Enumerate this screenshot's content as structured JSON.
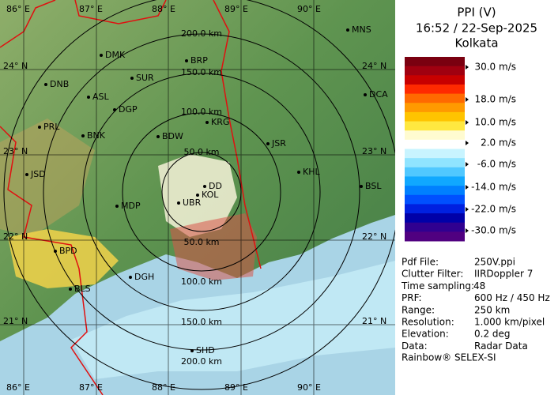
{
  "map": {
    "longitude_labels": [
      "86° E",
      "87° E",
      "88° E",
      "89° E",
      "90° E"
    ],
    "latitude_labels": [
      "24° N",
      "23° N",
      "22° N",
      "21° N"
    ],
    "range_labels": [
      "50.0 km",
      "100.0 km",
      "150.0 km",
      "200.0 km"
    ],
    "places": [
      "MNS",
      "DMK",
      "BRP",
      "DNB",
      "SUR",
      "ASL",
      "DCA",
      "DGP",
      "KRG",
      "PRL",
      "BNK",
      "BDW",
      "JSR",
      "KHL",
      "JSD",
      "DD",
      "KOL",
      "UBR",
      "BSL",
      "MDP",
      "BPD",
      "DGH",
      "BLS",
      "SHD"
    ]
  },
  "legend": {
    "title": "PPI (V)",
    "timestamp": "16:52 / 22-Sep-2025",
    "site": "Kolkata",
    "scale_labels": [
      "30.0 m/s",
      "18.0 m/s",
      "10.0 m/s",
      "2.0 m/s",
      "-6.0 m/s",
      "-14.0 m/s",
      "-22.0 m/s",
      "-30.0 m/s"
    ]
  },
  "info": {
    "rows": [
      [
        "Pdf File:",
        "250V.ppi"
      ],
      [
        "Clutter Filter:",
        "IIRDoppler 7"
      ],
      [
        "Time sampling:",
        "48"
      ],
      [
        "PRF:",
        "600 Hz / 450 Hz"
      ],
      [
        "Range:",
        "250 km"
      ],
      [
        "Resolution:",
        "1.000 km/pixel"
      ],
      [
        "Elevation:",
        "0.2 deg"
      ],
      [
        "Data:",
        "Radar Data"
      ]
    ],
    "footer": "Rainbow® SELEX-SI"
  }
}
